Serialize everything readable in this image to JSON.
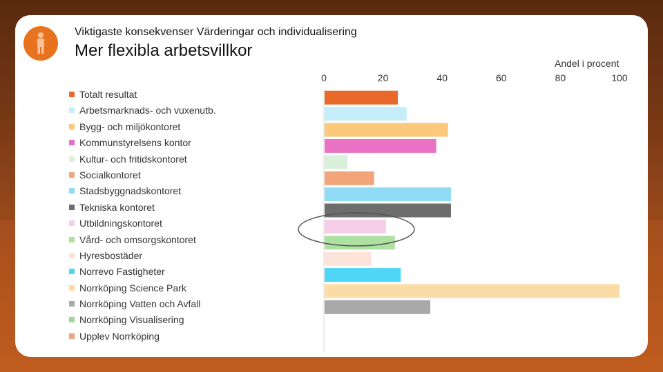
{
  "header": {
    "subtitle": "Viktigaste konsekvenser Värderingar och individualisering",
    "title": "Mer flexibla arbetsvillkor",
    "badge_icon": "person-icon"
  },
  "chart_data": {
    "type": "bar",
    "orientation": "horizontal",
    "unit_label": "Andel i procent",
    "xlim": [
      0,
      100
    ],
    "ticks": [
      "0",
      "20",
      "40",
      "60",
      "80",
      "100"
    ],
    "tick_values": [
      0,
      20,
      40,
      60,
      80,
      100
    ],
    "grid": false,
    "legend_position": "left",
    "highlighted_category": "Utbildningskontoret",
    "categories": [
      "Totalt resultat",
      "Arbetsmarknads- och vuxenutb.",
      "Bygg- och miljökontoret",
      "Kommunstyrelsens kontor",
      "Kultur- och fritidskontoret",
      "Socialkontoret",
      "Stadsbyggnadskontoret",
      "Tekniska kontoret",
      "Utbildningskontoret",
      "Vård- och omsorgskontoret",
      "Hyresbostäder",
      "Norrevo Fastigheter",
      "Norrköping Science Park",
      "Norrköping Vatten och Avfall",
      "Norrköping Visualisering",
      "Upplev Norrköping"
    ],
    "values": [
      25,
      28,
      42,
      38,
      8,
      17,
      43,
      43,
      21,
      24,
      16,
      26,
      100,
      36,
      null,
      null
    ],
    "colors": [
      "#e8692a",
      "#c6eefa",
      "#fcc97a",
      "#ea72c4",
      "#daf0da",
      "#f2a57a",
      "#8fdcf4",
      "#6d6d6d",
      "#f5cde9",
      "#aee0a2",
      "#fbe3da",
      "#4fd5f5",
      "#fcdca6",
      "#a9a9a9",
      "#9ed895",
      "#f0a47c"
    ]
  }
}
